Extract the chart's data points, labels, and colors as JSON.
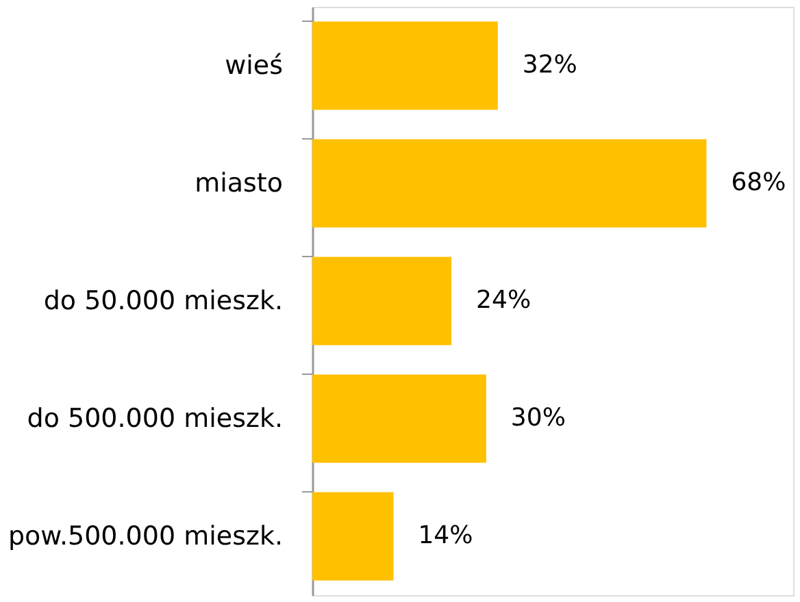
{
  "chart_data": {
    "type": "bar",
    "orientation": "horizontal",
    "categories": [
      "wieś",
      "miasto",
      "do 50.000 mieszk.",
      "do 500.000 mieszk.",
      "pow.500.000 mieszk."
    ],
    "values": [
      32,
      68,
      24,
      30,
      14
    ],
    "value_labels": [
      "32%",
      "68%",
      "24%",
      "30%",
      "14%"
    ],
    "color": "#ffc000",
    "tick_labels": "y"
  }
}
